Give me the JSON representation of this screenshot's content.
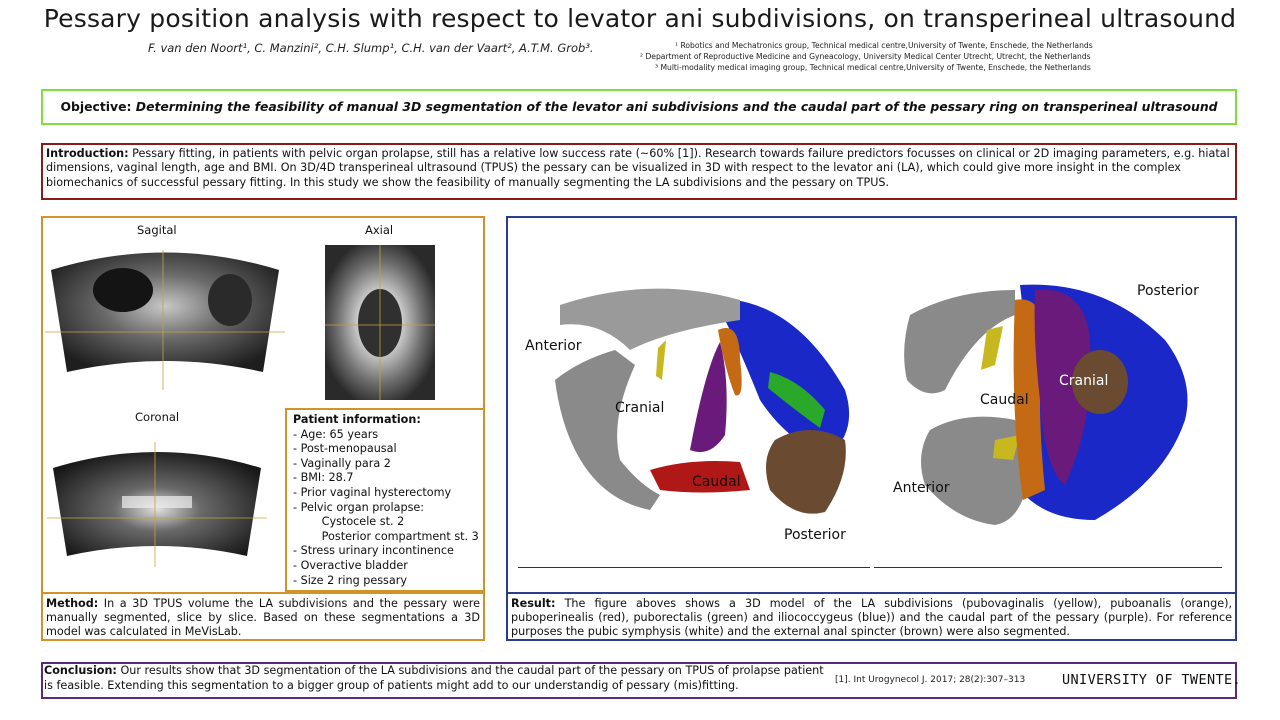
{
  "title": "Pessary position analysis with respect to levator ani subdivisions, on transperineal ultrasound",
  "authors": "F. van den Noort¹, C. Manzini², C.H. Slump¹, C.H. van der Vaart², A.T.M. Grob³.",
  "affiliations": [
    "¹  Robotics and Mechatronics group, Technical medical centre,University of Twente, Enschede, the Netherlands",
    "²  Department of Reproductive Medicine and Gyneacology, University Medical Center Utrecht, Utrecht, the Netherlands",
    "³  Multi-modality medical imaging group, Technical medical centre,University of Twente, Enschede, the Netherlands"
  ],
  "objective": {
    "label": "Objective:",
    "text": "Determining the feasibility of manual 3D segmentation of the levator ani subdivisions and the caudal part of the pessary ring on transperineal ultrasound"
  },
  "introduction": {
    "label": "Introduction:",
    "text": "Pessary fitting, in patients with pelvic organ prolapse, still has a relative low success rate (~60% [1]). Research towards failure predictors focusses on clinical or 2D imaging parameters, e.g. hiatal dimensions, vaginal length, age and BMI. On 3D/4D transperineal ultrasound (TPUS) the pessary can be visualized in 3D with respect to the levator ani (LA), which could give more insight in the complex biomechanics of successful pessary fitting. In this study we show the feasibility of manually segmenting the LA subdivisions and the pessary on TPUS."
  },
  "ultrasound_views": {
    "sagital": "Sagital",
    "axial": "Axial",
    "coronal": "Coronal"
  },
  "patient": {
    "heading": "Patient information:",
    "items": [
      "- Age: 65 years",
      "- Post-menopausal",
      "- Vaginally para 2",
      "- BMI: 28.7",
      "- Prior vaginal hysterectomy",
      "- Pelvic organ prolapse:",
      "   Cystocele st. 2",
      "   Posterior compartment st. 3",
      "- Stress urinary incontinence",
      "- Overactive bladder",
      "- Size 2 ring pessary"
    ]
  },
  "method": {
    "label": "Method:",
    "text": "In a 3D TPUS volume the LA subdivisions and the pessary were manually segmented, slice by slice. Based on these segmentations a 3D model was calculated in MeVisLab."
  },
  "model_labels": {
    "left": {
      "anterior": "Anterior",
      "cranial": "Cranial",
      "caudal": "Caudal",
      "posterior": "Posterior"
    },
    "right": {
      "posterior": "Posterior",
      "cranial": "Cranial",
      "caudal": "Caudal",
      "anterior": "Anterior"
    }
  },
  "result": {
    "label": "Result:",
    "text": "The figure aboves shows a 3D model of the LA subdivisions (pubovaginalis (yellow), puboanalis (orange), puboperinealis (red), puborectalis (green) and iliococcygeus (blue)) and the caudal part of the pessary (purple). For reference purposes the pubic symphysis (white) and the external anal spincter (brown) were also segmented."
  },
  "conclusion": {
    "label": "Conclusion:",
    "text": "Our results show that 3D segmentation of the LA subdivisions and the caudal part of the pessary on TPUS of prolapse patient is feasible. Extending this segmentation to a bigger group of patients might add to our understandig of pessary (mis)fitting."
  },
  "reference": "[1]. Int Urogynecol J. 2017; 28(2):307–313",
  "logo": "UNIVERSITY OF TWENTE.",
  "colors": {
    "objective_border": "#7ee040",
    "intro_border": "#8b1a1a",
    "method_border": "#d4912a",
    "result_border": "#2a3e8e",
    "conclusion_border": "#5a2a7e",
    "pubovaginalis": "#c8b820",
    "puboanalis": "#c46a14",
    "puboperinealis": "#b01818",
    "puborectalis": "#2aa82a",
    "iliococcygeus": "#1a28c8",
    "pessary": "#6a1a7a",
    "pubic_symphysis": "#a8a8a8",
    "anal_sphincter": "#6a4a30"
  }
}
